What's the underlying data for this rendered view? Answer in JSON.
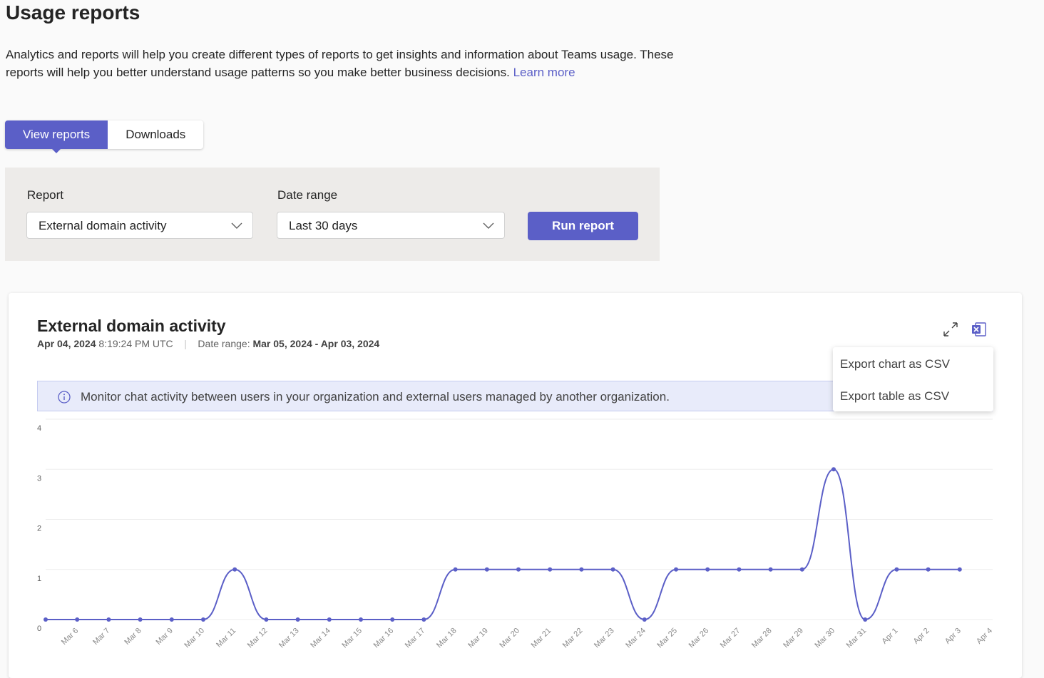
{
  "header": {
    "title": "Usage reports",
    "description": "Analytics and reports will help you create different types of reports to get insights and information about Teams usage. These reports will help you better understand usage patterns so you make better business decisions.",
    "learn_more": "Learn more"
  },
  "tabs": [
    "View reports",
    "Downloads"
  ],
  "form": {
    "report_label": "Report",
    "report_value": "External domain activity",
    "range_label": "Date range",
    "range_value": "Last 30 days",
    "run_button": "Run report"
  },
  "card": {
    "date": "Apr 04, 2024",
    "time": "8:19:24 PM UTC",
    "separator": "|",
    "range_label": "Date range:",
    "range_value": "Mar 05, 2024 - Apr 03, 2024",
    "info": "Monitor chat activity between users in your organization and external users managed by another organization.",
    "menu": [
      "Export chart as CSV",
      "Export table as CSV"
    ]
  },
  "chart_data": {
    "type": "line",
    "title": "External domain activity",
    "categories": [
      null,
      "Mar 6",
      "Mar 7",
      "Mar 8",
      "Mar 9",
      "Mar 10",
      "Mar 11",
      "Mar 12",
      "Mar 13",
      "Mar 14",
      "Mar 15",
      "Mar 16",
      "Mar 17",
      "Mar 18",
      "Mar 19",
      "Mar 20",
      "Mar 21",
      "Mar 22",
      "Mar 23",
      "Mar 24",
      "Mar 25",
      "Mar 26",
      "Mar 27",
      "Mar 28",
      "Mar 29",
      "Mar 30",
      "Mar 31",
      "Apr 1",
      "Apr 2",
      "Apr 3",
      "Apr 4"
    ],
    "values": [
      0,
      0,
      0,
      0,
      0,
      0,
      1,
      0,
      0,
      0,
      0,
      0,
      0,
      1,
      1,
      1,
      1,
      1,
      1,
      0,
      1,
      1,
      1,
      1,
      1,
      3,
      0,
      1,
      1,
      1,
      null
    ],
    "color": "#5b5fc7",
    "ylim": [
      0,
      4
    ],
    "yticks": [
      0,
      1,
      2,
      3,
      4
    ],
    "grid": true
  }
}
